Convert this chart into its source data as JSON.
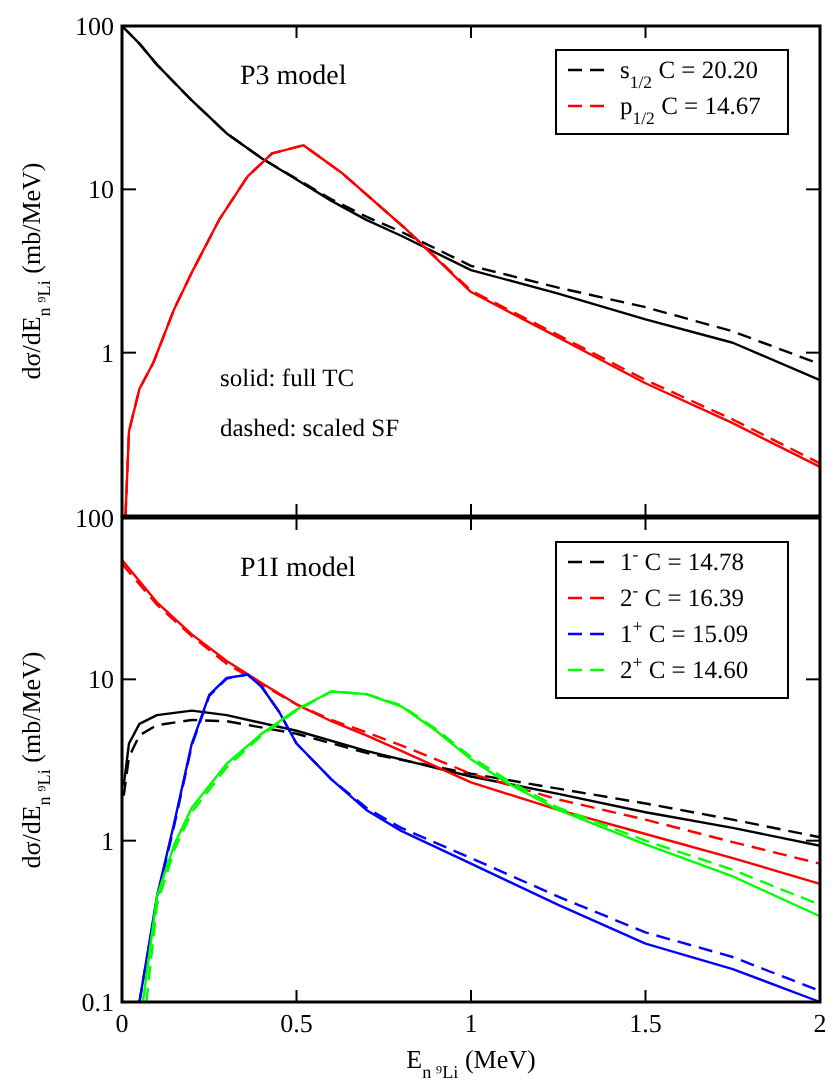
{
  "chart_data": [
    {
      "type": "line",
      "ylabel": "dσ/dE$_{n ⁹Li}$ (mb/MeV)",
      "annotations": [
        "P3 model",
        "solid: full TC",
        "dashed: scaled SF"
      ],
      "xlim": [
        0,
        2
      ],
      "xticks": [
        0,
        0.5,
        1,
        1.5,
        2
      ],
      "ylim": [
        0.1,
        100
      ],
      "yticks": [
        {
          "value": 0.1,
          "label": null
        },
        1,
        10,
        100
      ],
      "log": "y",
      "grid": false,
      "legend": "top right",
      "tick_labels": "y",
      "series": [
        {
          "color": "#000000",
          "line_style": "solid",
          "x": [
            0,
            0.05,
            0.1,
            0.2,
            0.3,
            0.4,
            0.5,
            0.6,
            0.7,
            0.8,
            1.0,
            1.25,
            1.5,
            1.75,
            2
          ],
          "values": [
            100,
            78,
            58,
            35,
            22,
            15.5,
            11.5,
            8.5,
            6.5,
            5.2,
            3.2,
            2.3,
            1.6,
            1.15,
            0.68
          ]
        },
        {
          "name": "s$_{1/2}$  C = 20.20",
          "color": "#000000",
          "line_style": "dashed",
          "x": [
            0,
            0.05,
            0.1,
            0.2,
            0.3,
            0.4,
            0.5,
            0.6,
            0.7,
            0.8,
            1.0,
            1.25,
            1.5,
            1.75,
            2
          ],
          "values": [
            100,
            78,
            58,
            35,
            22,
            15.5,
            11.6,
            8.7,
            6.8,
            5.5,
            3.4,
            2.5,
            1.9,
            1.35,
            0.85
          ]
        },
        {
          "color": "#ff0000",
          "line_style": "solid",
          "x": [
            0.01,
            0.02,
            0.05,
            0.09,
            0.15,
            0.2,
            0.28,
            0.36,
            0.43,
            0.52,
            0.63,
            0.81,
            1.0,
            1.25,
            1.5,
            1.75,
            2
          ],
          "values": [
            0.1,
            0.33,
            0.6,
            0.87,
            1.86,
            3.1,
            6.6,
            12,
            16.6,
            18.6,
            12.6,
            5.8,
            2.35,
            1.24,
            0.65,
            0.37,
            0.2
          ]
        },
        {
          "name": "p$_{1/2}$  C = 14.67",
          "color": "#ff0000",
          "line_style": "dashed",
          "x": [
            0.01,
            0.02,
            0.05,
            0.09,
            0.15,
            0.2,
            0.28,
            0.36,
            0.43,
            0.52,
            0.63,
            0.81,
            1.0,
            1.25,
            1.5,
            1.75,
            2
          ],
          "values": [
            0.1,
            0.33,
            0.6,
            0.87,
            1.86,
            3.1,
            6.6,
            12,
            16.6,
            18.6,
            12.6,
            5.8,
            2.4,
            1.28,
            0.68,
            0.39,
            0.21
          ]
        }
      ]
    },
    {
      "type": "line",
      "xlabel": "E$_{n ⁹Li}$ (MeV)",
      "ylabel": "dσ/dE$_{n ⁹Li}$ (mb/MeV)",
      "annotations": [
        "P1I model"
      ],
      "xlim": [
        0,
        2
      ],
      "xticks": [
        0,
        0.5,
        1,
        1.5,
        2
      ],
      "ylim": [
        0.1,
        100
      ],
      "yticks": [
        0.1,
        1,
        10,
        100
      ],
      "log": "y",
      "grid": false,
      "legend": "top right",
      "series": [
        {
          "color": "#000000",
          "line_style": "solid",
          "x": [
            0.005,
            0.02,
            0.05,
            0.1,
            0.2,
            0.3,
            0.5,
            0.7,
            1.0,
            1.25,
            1.5,
            1.75,
            2
          ],
          "values": [
            2.2,
            4,
            5.3,
            6.0,
            6.4,
            6.0,
            4.8,
            3.6,
            2.5,
            1.95,
            1.5,
            1.2,
            0.93
          ]
        },
        {
          "name": "1$^{-}$  C = 14.78",
          "color": "#000000",
          "line_style": "dashed",
          "x": [
            0.005,
            0.02,
            0.05,
            0.1,
            0.2,
            0.3,
            0.5,
            0.7,
            1.0,
            1.25,
            1.5,
            1.75,
            2
          ],
          "values": [
            1.9,
            3.3,
            4.5,
            5.2,
            5.6,
            5.5,
            4.6,
            3.5,
            2.6,
            2.1,
            1.7,
            1.35,
            1.05
          ]
        },
        {
          "color": "#ff0000",
          "line_style": "solid",
          "x": [
            0,
            0.1,
            0.2,
            0.3,
            0.4,
            0.5,
            0.6,
            0.7,
            0.8,
            1.0,
            1.25,
            1.5,
            1.75,
            2
          ],
          "values": [
            55,
            30,
            19,
            13,
            9.5,
            7,
            5.5,
            4.5,
            3.6,
            2.3,
            1.55,
            1.1,
            0.78,
            0.54
          ]
        },
        {
          "name": "2$^{-}$  C = 16.39",
          "color": "#ff0000",
          "line_style": "dashed",
          "x": [
            0,
            0.1,
            0.2,
            0.3,
            0.4,
            0.5,
            0.6,
            0.7,
            0.8,
            1.0,
            1.25,
            1.5,
            1.75,
            2
          ],
          "values": [
            52,
            29,
            18.5,
            12.5,
            9.3,
            7,
            5.6,
            4.7,
            3.9,
            2.6,
            1.8,
            1.35,
            0.98,
            0.72
          ]
        },
        {
          "color": "#0000ff",
          "line_style": "solid",
          "x": [
            0.05,
            0.1,
            0.15,
            0.2,
            0.25,
            0.3,
            0.36,
            0.4,
            0.45,
            0.5,
            0.6,
            0.7,
            0.8,
            1.0,
            1.25,
            1.5,
            1.75,
            2
          ],
          "values": [
            0.1,
            0.45,
            1.3,
            4.0,
            8.0,
            10.2,
            10.7,
            9.0,
            6.3,
            4.0,
            2.4,
            1.55,
            1.15,
            0.72,
            0.4,
            0.23,
            0.16,
            0.1
          ]
        },
        {
          "name": "1$^{+}$  C = 15.09",
          "color": "#0000ff",
          "line_style": "dashed",
          "x": [
            0.05,
            0.1,
            0.15,
            0.2,
            0.25,
            0.3,
            0.36,
            0.4,
            0.45,
            0.5,
            0.6,
            0.7,
            0.8,
            1.0,
            1.25,
            1.5,
            1.75,
            2
          ],
          "values": [
            0.1,
            0.43,
            1.25,
            3.9,
            7.9,
            10.1,
            10.7,
            9.0,
            6.3,
            4.0,
            2.4,
            1.6,
            1.2,
            0.78,
            0.45,
            0.27,
            0.19,
            0.117
          ]
        },
        {
          "color": "#00ff00",
          "line_style": "solid",
          "x": [
            0.06,
            0.1,
            0.15,
            0.2,
            0.3,
            0.4,
            0.5,
            0.6,
            0.7,
            0.8,
            0.9,
            1.0,
            1.1,
            1.25,
            1.5,
            1.75,
            2
          ],
          "values": [
            0.1,
            0.45,
            0.95,
            1.6,
            3.0,
            4.6,
            6.5,
            8.4,
            8.1,
            6.8,
            4.8,
            3.2,
            2.3,
            1.55,
            0.95,
            0.6,
            0.34
          ]
        },
        {
          "name": "2$^{+}$  C = 14.60",
          "color": "#00ff00",
          "line_style": "dashed",
          "x": [
            0.07,
            0.1,
            0.15,
            0.2,
            0.3,
            0.4,
            0.5,
            0.6,
            0.7,
            0.8,
            0.9,
            1.0,
            1.1,
            1.25,
            1.5,
            1.75,
            2
          ],
          "values": [
            0.1,
            0.4,
            0.88,
            1.5,
            2.85,
            4.5,
            6.4,
            8.4,
            8.1,
            6.9,
            4.9,
            3.3,
            2.4,
            1.6,
            1.0,
            0.66,
            0.4
          ]
        }
      ]
    }
  ]
}
